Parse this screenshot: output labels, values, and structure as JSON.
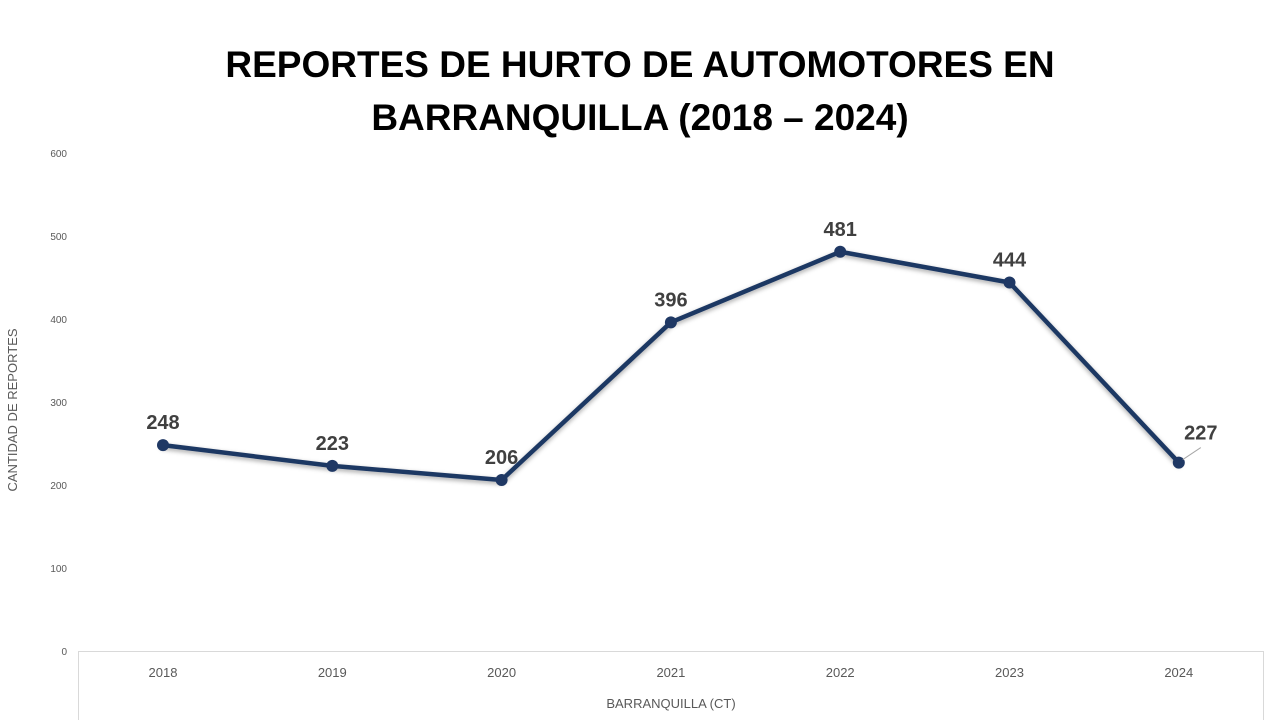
{
  "chart_data": {
    "type": "line",
    "title_lines": [
      "REPORTES DE HURTO DE AUTOMOTORES EN",
      "BARRANQUILLA (2018 – 2024)"
    ],
    "categories": [
      "2018",
      "2019",
      "2020",
      "2021",
      "2022",
      "2023",
      "2024"
    ],
    "series": [
      {
        "values": [
          248,
          223,
          206,
          396,
          481,
          444,
          227
        ]
      }
    ],
    "xlabel": "BARRANQUILLA (CT)",
    "ylabel": "CANTIDAD DE REPORTES",
    "ylim": [
      0,
      600
    ],
    "yticks": [
      "0",
      "100",
      "200",
      "300",
      "400",
      "500",
      "600"
    ],
    "grid": false,
    "legend": "none",
    "line_color": "#1F3864"
  }
}
